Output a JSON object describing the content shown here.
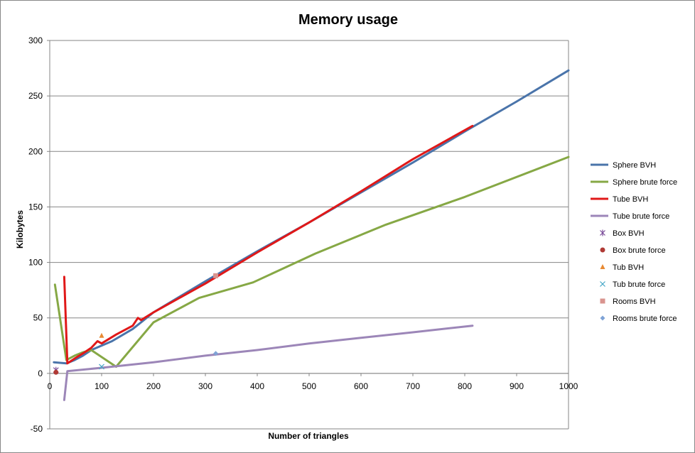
{
  "chart_data": {
    "type": "line",
    "title": "Memory usage",
    "xlabel": "Number of triangles",
    "ylabel": "Kilobytes",
    "xlim": [
      0,
      1000
    ],
    "ylim": [
      -50,
      300
    ],
    "x_ticks": [
      0,
      100,
      200,
      300,
      400,
      500,
      600,
      700,
      800,
      900,
      1000
    ],
    "y_ticks": [
      -50,
      0,
      50,
      100,
      150,
      200,
      250,
      300
    ],
    "grid": "horizontal",
    "legend": "right",
    "series": [
      {
        "name": "Sphere BVH",
        "kind": "line",
        "color": "#4a74aa",
        "points": [
          [
            8,
            10
          ],
          [
            32,
            9
          ],
          [
            48,
            12
          ],
          [
            64,
            16
          ],
          [
            80,
            21
          ],
          [
            120,
            29
          ],
          [
            160,
            40
          ],
          [
            200,
            55
          ],
          [
            300,
            83
          ],
          [
            400,
            110
          ],
          [
            500,
            136
          ],
          [
            600,
            163
          ],
          [
            700,
            190
          ],
          [
            800,
            218
          ],
          [
            900,
            245
          ],
          [
            1000,
            273
          ]
        ]
      },
      {
        "name": "Sphere brute force",
        "kind": "line",
        "color": "#86a845",
        "points": [
          [
            10,
            80
          ],
          [
            32,
            12
          ],
          [
            48,
            16
          ],
          [
            64,
            19
          ],
          [
            80,
            21
          ],
          [
            128,
            6
          ],
          [
            200,
            46
          ],
          [
            288,
            68
          ],
          [
            392,
            82
          ],
          [
            512,
            108
          ],
          [
            648,
            134
          ],
          [
            800,
            159
          ],
          [
            1000,
            195
          ]
        ]
      },
      {
        "name": "Tube BVH",
        "kind": "line",
        "color": "#e01818",
        "points": [
          [
            28,
            87
          ],
          [
            34,
            9
          ],
          [
            50,
            14
          ],
          [
            64,
            18
          ],
          [
            80,
            23
          ],
          [
            92,
            29
          ],
          [
            100,
            27
          ],
          [
            128,
            35
          ],
          [
            160,
            43
          ],
          [
            170,
            50
          ],
          [
            176,
            48
          ],
          [
            200,
            55
          ],
          [
            300,
            81
          ],
          [
            400,
            109
          ],
          [
            500,
            136
          ],
          [
            600,
            164
          ],
          [
            700,
            193
          ],
          [
            815,
            223
          ]
        ]
      },
      {
        "name": "Tube brute force",
        "kind": "line",
        "color": "#9c86b8",
        "points": [
          [
            28,
            -24
          ],
          [
            34,
            2
          ],
          [
            100,
            5
          ],
          [
            200,
            10
          ],
          [
            300,
            16
          ],
          [
            400,
            21
          ],
          [
            500,
            27
          ],
          [
            600,
            32
          ],
          [
            700,
            37
          ],
          [
            815,
            43
          ]
        ]
      },
      {
        "name": "Box BVH",
        "kind": "marker",
        "marker": "asterisk",
        "color": "#7a4d99",
        "points": [
          [
            12,
            3
          ]
        ]
      },
      {
        "name": "Box brute force",
        "kind": "marker",
        "marker": "circle",
        "color": "#b03a35",
        "points": [
          [
            12,
            1
          ]
        ]
      },
      {
        "name": "Tub BVH",
        "kind": "marker",
        "marker": "triangle",
        "color": "#e88a33",
        "points": [
          [
            100,
            34
          ]
        ]
      },
      {
        "name": "Tub brute force",
        "kind": "marker",
        "marker": "x",
        "color": "#44a5c6",
        "points": [
          [
            100,
            6
          ]
        ]
      },
      {
        "name": "Rooms BVH",
        "kind": "marker",
        "marker": "square",
        "color": "#d9948f",
        "points": [
          [
            320,
            88
          ]
        ]
      },
      {
        "name": "Rooms brute force",
        "kind": "marker",
        "marker": "diamond",
        "color": "#7fa3d6",
        "points": [
          [
            320,
            18
          ]
        ]
      }
    ]
  }
}
